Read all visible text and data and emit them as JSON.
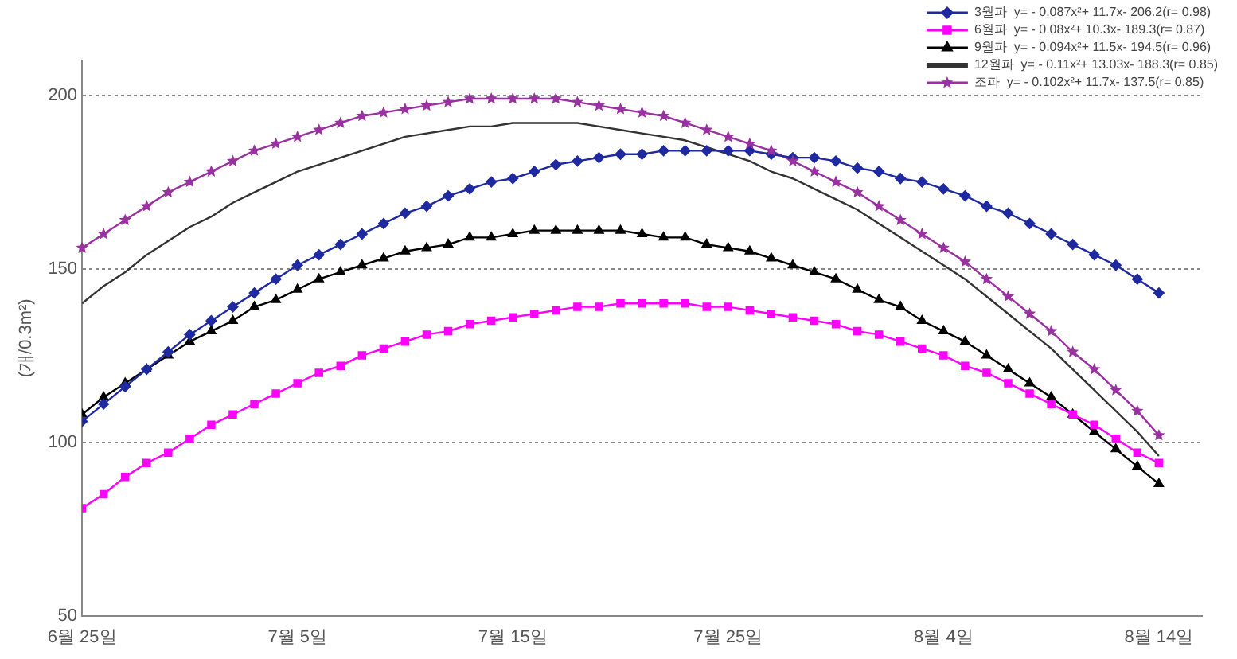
{
  "chart_data": {
    "type": "line",
    "ylabel": "(개/0.3m²)",
    "legend": "top right",
    "grid": "y",
    "xlim": [
      "--06-25",
      "--08-16"
    ],
    "ylim": [
      50,
      210
    ],
    "yticks": [
      50,
      100,
      150,
      200
    ],
    "xticks": [
      {
        "value": "--06-25",
        "label": "6월 25일"
      },
      {
        "value": "--07-05",
        "label": "7월 5일"
      },
      {
        "value": "--07-15",
        "label": "7월 15일"
      },
      {
        "value": "--07-25",
        "label": "7월 25일"
      },
      {
        "value": "--08-04",
        "label": "8월 4일"
      },
      {
        "value": "--08-14",
        "label": "8월 14일"
      }
    ],
    "x": [
      "--06-25",
      "--06-26",
      "--06-27",
      "--06-28",
      "--06-29",
      "--06-30",
      "--07-01",
      "--07-02",
      "--07-03",
      "--07-04",
      "--07-05",
      "--07-06",
      "--07-07",
      "--07-08",
      "--07-09",
      "--07-10",
      "--07-11",
      "--07-12",
      "--07-13",
      "--07-14",
      "--07-15",
      "--07-16",
      "--07-17",
      "--07-18",
      "--07-19",
      "--07-20",
      "--07-21",
      "--07-22",
      "--07-23",
      "--07-24",
      "--07-25",
      "--07-26",
      "--07-27",
      "--07-28",
      "--07-29",
      "--07-30",
      "--07-31",
      "--08-01",
      "--08-02",
      "--08-03",
      "--08-04",
      "--08-05",
      "--08-06",
      "--08-07",
      "--08-08",
      "--08-09",
      "--08-10",
      "--08-11",
      "--08-12",
      "--08-13",
      "--08-14"
    ],
    "series": [
      {
        "name": "3월파  y= - 0.087x²+ 11.7x- 206.2(r= 0.98)",
        "color": "#1f2aa0",
        "marker": "diamond",
        "values": [
          106,
          111,
          116,
          121,
          126,
          131,
          135,
          139,
          143,
          147,
          151,
          154,
          157,
          160,
          163,
          166,
          168,
          171,
          173,
          175,
          176,
          178,
          180,
          181,
          182,
          183,
          183,
          184,
          184,
          184,
          184,
          184,
          183,
          182,
          182,
          181,
          179,
          178,
          176,
          175,
          173,
          171,
          168,
          166,
          163,
          160,
          157,
          154,
          151,
          147,
          143
        ]
      },
      {
        "name": "6월파  y= - 0.08x²+ 10.3x- 189.3(r= 0.87)",
        "color": "#ff00ff",
        "marker": "square",
        "values": [
          81,
          85,
          90,
          94,
          97,
          101,
          105,
          108,
          111,
          114,
          117,
          120,
          122,
          125,
          127,
          129,
          131,
          132,
          134,
          135,
          136,
          137,
          138,
          139,
          139,
          140,
          140,
          140,
          140,
          139,
          139,
          138,
          137,
          136,
          135,
          134,
          132,
          131,
          129,
          127,
          125,
          122,
          120,
          117,
          114,
          111,
          108,
          105,
          101,
          97,
          94
        ]
      },
      {
        "name": "9월파  y= - 0.094x²+ 11.5x- 194.5(r= 0.96)",
        "color": "#000000",
        "marker": "triangle",
        "values": [
          108,
          113,
          117,
          121,
          125,
          129,
          132,
          135,
          139,
          141,
          144,
          147,
          149,
          151,
          153,
          155,
          156,
          157,
          159,
          159,
          160,
          161,
          161,
          161,
          161,
          161,
          160,
          159,
          159,
          157,
          156,
          155,
          153,
          151,
          149,
          147,
          144,
          141,
          139,
          135,
          132,
          129,
          125,
          121,
          117,
          113,
          108,
          103,
          98,
          93,
          88
        ]
      },
      {
        "name": "12월파  y= - 0.11x²+ 13.03x- 188.3(r= 0.85)",
        "color": "#333333",
        "marker": "none",
        "values": [
          140,
          145,
          149,
          154,
          158,
          162,
          165,
          169,
          172,
          175,
          178,
          180,
          182,
          184,
          186,
          188,
          189,
          190,
          191,
          191,
          192,
          192,
          192,
          192,
          191,
          190,
          189,
          188,
          187,
          185,
          183,
          181,
          178,
          176,
          173,
          170,
          167,
          163,
          159,
          155,
          151,
          147,
          142,
          137,
          132,
          127,
          121,
          115,
          109,
          103,
          96
        ]
      },
      {
        "name": "조파  y= - 0.102x²+ 11.7x- 137.5(r= 0.85)",
        "color": "#9932a0",
        "marker": "star",
        "values": [
          156,
          160,
          164,
          168,
          172,
          175,
          178,
          181,
          184,
          186,
          188,
          190,
          192,
          194,
          195,
          196,
          197,
          198,
          199,
          199,
          199,
          199,
          199,
          198,
          197,
          196,
          195,
          194,
          192,
          190,
          188,
          186,
          184,
          181,
          178,
          175,
          172,
          168,
          164,
          160,
          156,
          152,
          147,
          142,
          137,
          132,
          126,
          121,
          115,
          109,
          102
        ]
      }
    ]
  }
}
